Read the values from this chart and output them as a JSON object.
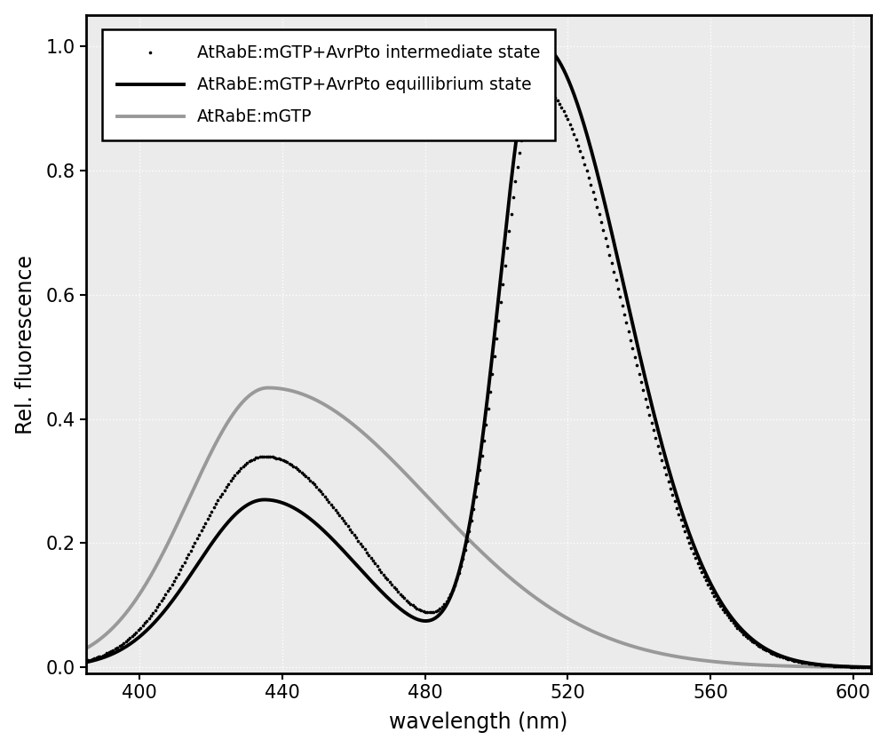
{
  "title": "",
  "xlabel": "wavelength (nm)",
  "ylabel": "Rel. fluorescence",
  "xlim": [
    385,
    605
  ],
  "ylim": [
    -0.01,
    1.05
  ],
  "xticks": [
    400,
    440,
    480,
    520,
    560,
    600
  ],
  "yticks": [
    0.0,
    0.2,
    0.4,
    0.6,
    0.8,
    1.0
  ],
  "legend": [
    {
      "label": "AtRabE:mGTP+AvrPto intermediate state",
      "color": "#000000",
      "linestyle": "dotted",
      "linewidth": 2.8
    },
    {
      "label": "AtRabE:mGTP+AvrPto equillibrium state",
      "color": "#000000",
      "linestyle": "solid",
      "linewidth": 2.8
    },
    {
      "label": "AtRabE:mGTP",
      "color": "#999999",
      "linestyle": "solid",
      "linewidth": 2.8
    }
  ],
  "background_color": "#ebebeb",
  "fig_background": "#ffffff",
  "grid_color": "#ffffff",
  "grid_linewidth": 1.0,
  "xlabel_fontsize": 17,
  "ylabel_fontsize": 17,
  "tick_fontsize": 15
}
